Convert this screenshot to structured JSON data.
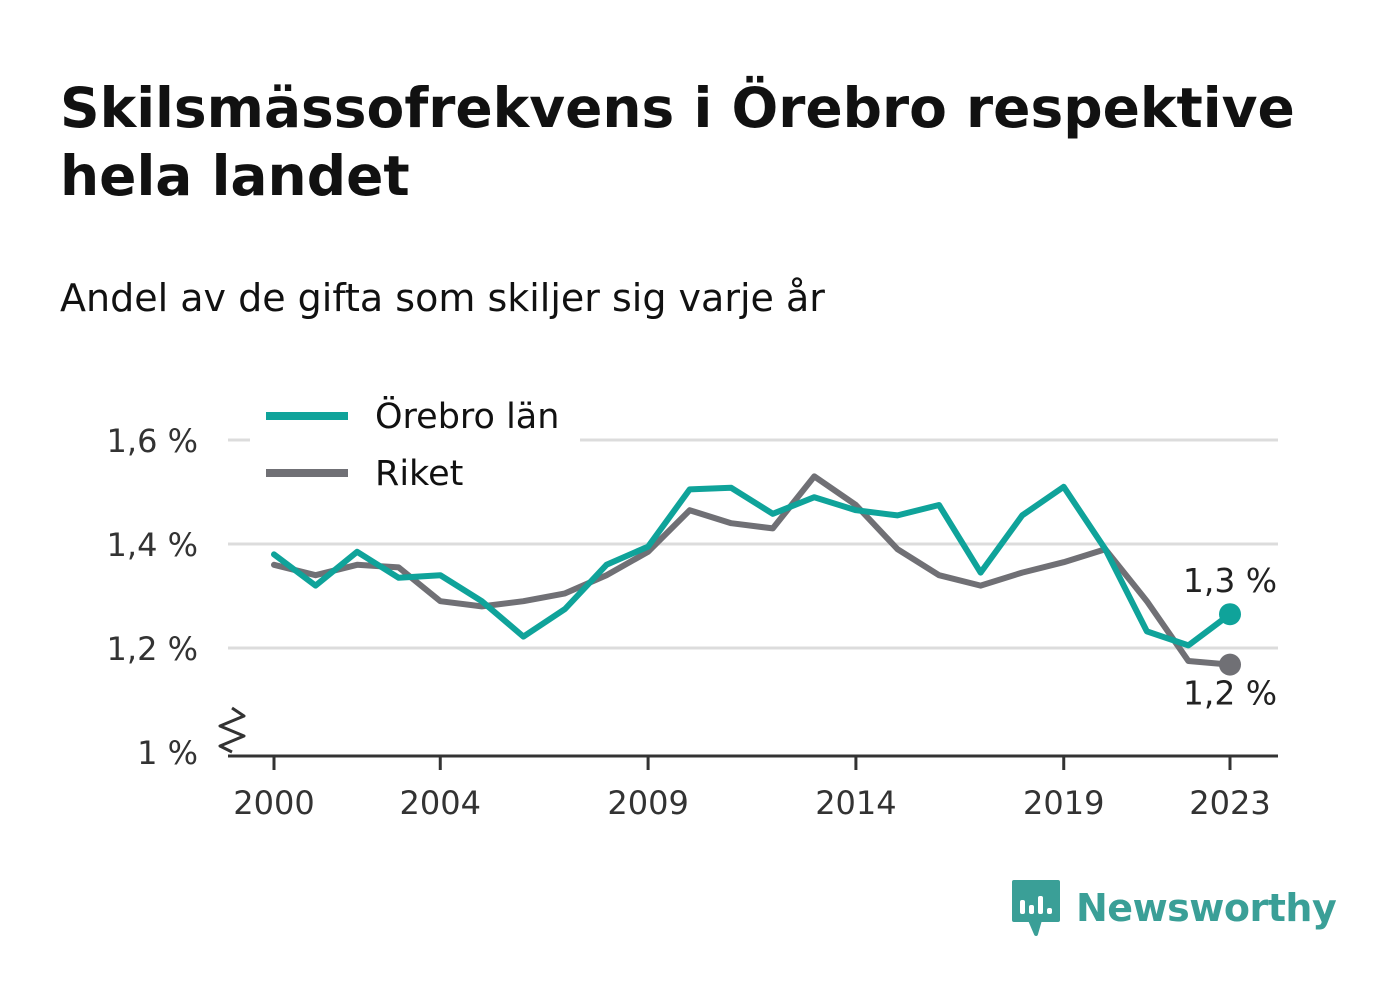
{
  "title": "Skilsmässofrekvens i Örebro respektive hela landet",
  "subtitle": "Andel av de gifta som skiljer sig varje år",
  "brand": {
    "name": "Newsworthy",
    "color": "#3a9f97",
    "icon": "newsworthy-logo-icon"
  },
  "chart_data": {
    "type": "line",
    "x": [
      2000,
      2001,
      2002,
      2003,
      2004,
      2005,
      2006,
      2007,
      2008,
      2009,
      2010,
      2011,
      2012,
      2013,
      2014,
      2015,
      2016,
      2017,
      2018,
      2019,
      2020,
      2021,
      2022,
      2023
    ],
    "x_ticks": [
      2000,
      2004,
      2009,
      2014,
      2019,
      2023
    ],
    "x_tick_labels": [
      "2000",
      "2004",
      "2009",
      "2014",
      "2019",
      "2023"
    ],
    "y_ticks": [
      1.0,
      1.2,
      1.4,
      1.6
    ],
    "y_tick_labels": [
      "1 %",
      "1,2 %",
      "1,4 %",
      "1,6 %"
    ],
    "ylim": [
      1.0,
      1.6
    ],
    "xlim": [
      2000,
      2023
    ],
    "grid": true,
    "axis_break": true,
    "legend_position": "top-left",
    "series": [
      {
        "name": "Örebro län",
        "color": "#0fa39a",
        "values": [
          1.38,
          1.32,
          1.385,
          1.335,
          1.34,
          1.29,
          1.222,
          1.275,
          1.36,
          1.395,
          1.505,
          1.508,
          1.458,
          1.49,
          1.465,
          1.455,
          1.475,
          1.345,
          1.455,
          1.51,
          1.39,
          1.232,
          1.205,
          1.265
        ],
        "end_label": "1,3 %"
      },
      {
        "name": "Riket",
        "color": "#707075",
        "values": [
          1.36,
          1.34,
          1.36,
          1.355,
          1.29,
          1.28,
          1.29,
          1.305,
          1.34,
          1.385,
          1.465,
          1.44,
          1.43,
          1.53,
          1.475,
          1.39,
          1.34,
          1.32,
          1.345,
          1.365,
          1.39,
          1.29,
          1.175,
          1.168
        ],
        "end_label": "1,2 %"
      }
    ]
  }
}
